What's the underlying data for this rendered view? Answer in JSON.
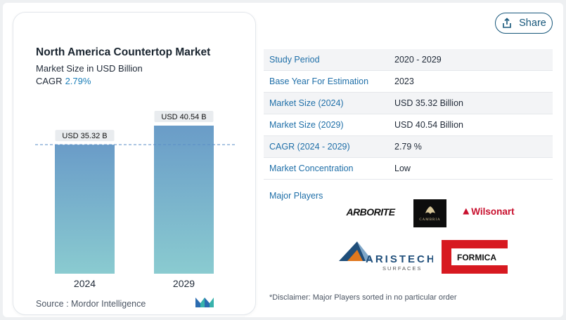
{
  "chart_data": {
    "type": "bar",
    "title": "North America Countertop Market",
    "subtitle": "Market Size in USD Billion",
    "cagr_label": "CAGR",
    "cagr_value": "2.79%",
    "categories": [
      "2024",
      "2029"
    ],
    "values": [
      35.32,
      40.54
    ],
    "data_labels": [
      "USD 35.32 B",
      "USD 40.54 B"
    ],
    "ylim": [
      0,
      40.54
    ],
    "colors": {
      "bar_top": "#6a9cc8",
      "bar_bottom": "#8acbd0",
      "reference_line": "#5b8fc7"
    }
  },
  "source": "Source : Mordor Intelligence",
  "share_label": "Share",
  "table": [
    {
      "label": "Study Period",
      "value": "2020 - 2029"
    },
    {
      "label": "Base Year For Estimation",
      "value": "2023"
    },
    {
      "label": "Market Size (2024)",
      "value": "USD 35.32 Billion"
    },
    {
      "label": "Market Size (2029)",
      "value": "USD 40.54 Billion"
    },
    {
      "label": "CAGR (2024 - 2029)",
      "value": "2.79 %"
    },
    {
      "label": "Market Concentration",
      "value": "Low"
    }
  ],
  "players_title": "Major Players",
  "players": {
    "arborite": "ARBORITE",
    "cambria": "CAMBRIA",
    "wilsonart": "Wilsonart",
    "aristech_1": "ARISTECH",
    "aristech_2": "SURFACES",
    "formica": "FORMICA"
  },
  "disclaimer": "*Disclaimer: Major Players sorted in no particular order"
}
